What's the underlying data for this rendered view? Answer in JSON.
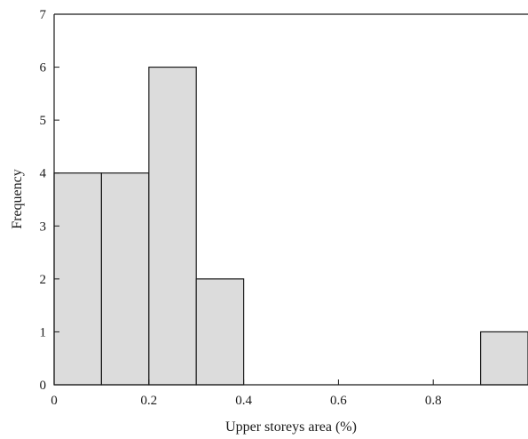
{
  "chart_data": {
    "type": "bar",
    "title": "",
    "xlabel": "Upper storeys area (%)",
    "ylabel": "Frequency",
    "bins": [
      {
        "start": 0.0,
        "end": 0.1,
        "value": 4
      },
      {
        "start": 0.1,
        "end": 0.2,
        "value": 4
      },
      {
        "start": 0.2,
        "end": 0.3,
        "value": 6
      },
      {
        "start": 0.3,
        "end": 0.4,
        "value": 2
      },
      {
        "start": 0.4,
        "end": 0.5,
        "value": 0
      },
      {
        "start": 0.5,
        "end": 0.6,
        "value": 0
      },
      {
        "start": 0.6,
        "end": 0.7,
        "value": 0
      },
      {
        "start": 0.7,
        "end": 0.8,
        "value": 0
      },
      {
        "start": 0.8,
        "end": 0.9,
        "value": 0
      },
      {
        "start": 0.9,
        "end": 1.0,
        "value": 1
      }
    ],
    "xlim": [
      0,
      1.0
    ],
    "ylim": [
      0,
      7
    ],
    "xticks": [
      "0",
      "0.2",
      "0.4",
      "0.6",
      "0.8"
    ],
    "yticks": [
      "0",
      "1",
      "2",
      "3",
      "4",
      "5",
      "6",
      "7"
    ],
    "grid": false,
    "bar_fill": "#dcdcdc",
    "bar_stroke": "#1a1a1a"
  }
}
